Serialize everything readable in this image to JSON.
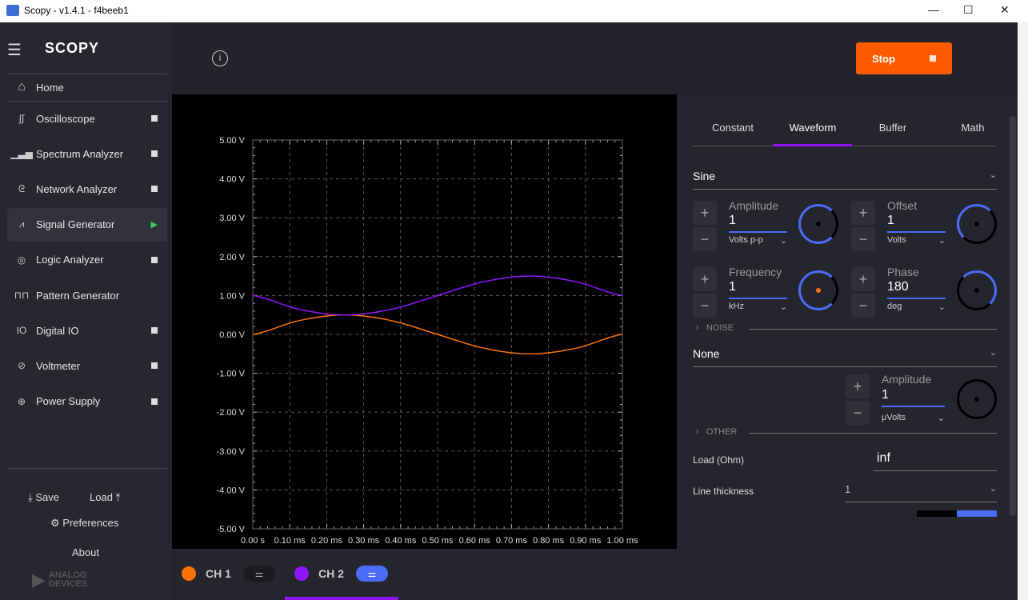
{
  "window": {
    "title": "Scopy - v1.4.1 - f4beeb1",
    "minimize": "—",
    "maximize": "☐",
    "close": "✕"
  },
  "sidebar": {
    "brand": "SCOPY",
    "home": "Home",
    "items": [
      {
        "label": "Oscilloscope",
        "icon": "oscilloscope-icon",
        "glyph": "∫∫"
      },
      {
        "label": "Spectrum Analyzer",
        "icon": "spectrum-icon",
        "glyph": "▁▃▅"
      },
      {
        "label": "Network Analyzer",
        "icon": "network-icon",
        "glyph": "ᘓ"
      },
      {
        "label": "Signal Generator",
        "icon": "signal-icon",
        "glyph": "⩘"
      },
      {
        "label": "Logic Analyzer",
        "icon": "logic-icon",
        "glyph": "◎"
      },
      {
        "label": "Pattern Generator",
        "icon": "pattern-icon",
        "glyph": "⊓⊓"
      },
      {
        "label": "Digital IO",
        "icon": "digital-io-icon",
        "glyph": "IO"
      },
      {
        "label": "Voltmeter",
        "icon": "voltmeter-icon",
        "glyph": "⊘"
      },
      {
        "label": "Power Supply",
        "icon": "power-icon",
        "glyph": "⊕"
      }
    ],
    "save": "Save",
    "load": "Load",
    "preferences": "Preferences",
    "about": "About",
    "logo": "ANALOG DEVICES"
  },
  "toolbar": {
    "stop": "Stop"
  },
  "panel": {
    "tabs": [
      "Constant",
      "Waveform",
      "Buffer",
      "Math"
    ],
    "active_tab": "Waveform",
    "waveform": "Sine",
    "amplitude": {
      "label": "Amplitude",
      "value": "1",
      "unit": "Volts p-p"
    },
    "offset": {
      "label": "Offset",
      "value": "1",
      "unit": "Volts"
    },
    "frequency": {
      "label": "Frequency",
      "value": "1",
      "unit": "kHz"
    },
    "phase": {
      "label": "Phase",
      "value": "180",
      "unit": "deg"
    },
    "noise_section": "NOISE",
    "noise_type": "None",
    "noise_amplitude": {
      "label": "Amplitude",
      "value": "1",
      "unit": "μVolts"
    },
    "other_section": "OTHER",
    "load_label": "Load (Ohm)",
    "load_value": "inf",
    "thickness_label": "Line thickness",
    "thickness_value": "1"
  },
  "channels": [
    {
      "label": "CH 1",
      "color": "#ff7200"
    },
    {
      "label": "CH 2",
      "color": "#9013fe"
    }
  ],
  "accent": "#4a6cf7",
  "chart_data": {
    "type": "line",
    "x_unit": "ms",
    "xlim": [
      0,
      1
    ],
    "ylim": [
      -5,
      5
    ],
    "grid": true,
    "x_ticks": [
      "0.00 s",
      "0.10 ms",
      "0.20 ms",
      "0.30 ms",
      "0.40 ms",
      "0.50 ms",
      "0.60 ms",
      "0.70 ms",
      "0.80 ms",
      "0.90 ms",
      "1.00 ms"
    ],
    "y_ticks": [
      "5.00 V",
      "4.00 V",
      "3.00 V",
      "2.00 V",
      "1.00 V",
      "0.00 V",
      "-1.00 V",
      "-2.00 V",
      "-3.00 V",
      "-4.00 V",
      "-5.00 V"
    ],
    "series": [
      {
        "name": "CH 1",
        "color": "#ff7200",
        "x": [
          0,
          0.125,
          0.25,
          0.375,
          0.5,
          0.625,
          0.75,
          0.875,
          1
        ],
        "y": [
          0,
          0.354,
          0.5,
          0.354,
          0,
          -0.354,
          -0.5,
          -0.354,
          0
        ]
      },
      {
        "name": "CH 2",
        "color": "#9013fe",
        "x": [
          0,
          0.125,
          0.25,
          0.375,
          0.5,
          0.625,
          0.75,
          0.875,
          1
        ],
        "y": [
          1,
          0.646,
          0.5,
          0.646,
          1,
          1.354,
          1.5,
          1.354,
          1
        ]
      }
    ]
  }
}
